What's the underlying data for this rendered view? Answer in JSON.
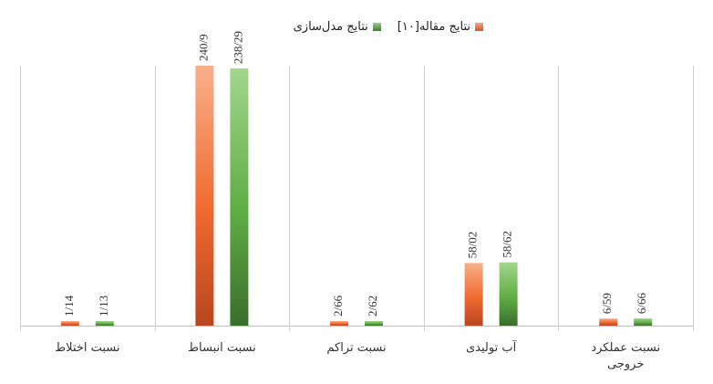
{
  "chart_data": {
    "type": "bar",
    "categories": [
      "نسبت اختلاط",
      "نسبت انبساط",
      "نسبت تراکم",
      "آب تولیدی",
      "نسبت عملکرد خروجی"
    ],
    "series": [
      {
        "name": "نتایج مقاله[۱۰]",
        "values": [
          1.14,
          240.9,
          2.66,
          58.02,
          6.59
        ],
        "labels": [
          "1/14",
          "240/9",
          "2/66",
          "58/02",
          "6/59"
        ],
        "color": "#e8602a"
      },
      {
        "name": "نتایج مدل‌سازی",
        "values": [
          1.13,
          238.29,
          2.62,
          58.62,
          6.66
        ],
        "labels": [
          "1/13",
          "238/29",
          "2/62",
          "58/62",
          "6/66"
        ],
        "color": "#5a9e3e"
      }
    ],
    "legend_position": "top",
    "grid": false
  }
}
